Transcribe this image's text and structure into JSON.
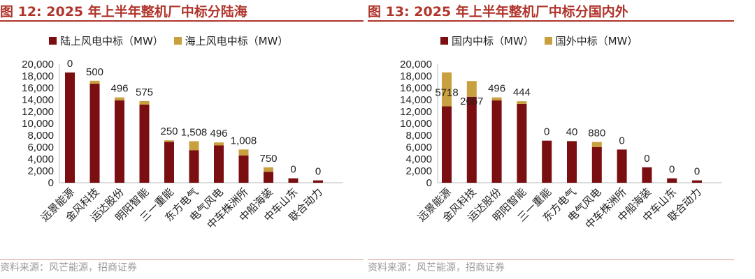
{
  "colors": {
    "primary": "#7a0e10",
    "secondary": "#c8a040",
    "title": "#b0342b",
    "source": "#9a9a9a"
  },
  "chart_data": [
    {
      "type": "bar",
      "stacked": true,
      "title": "图 12:  2025 年上半年整机厂中标分陆海",
      "categories": [
        "远景能源",
        "金风科技",
        "运达股份",
        "明阳智能",
        "三一重能",
        "东方电气",
        "电气风电",
        "中车株洲所",
        "中船海装",
        "中车山东",
        "联合动力"
      ],
      "series": [
        {
          "name": "陆上风电中标（MW）",
          "values": [
            18600,
            16700,
            13900,
            13200,
            6900,
            5500,
            6300,
            4600,
            1850,
            750,
            400
          ]
        },
        {
          "name": "海上风电中标（MW）",
          "values": [
            0,
            500,
            496,
            575,
            250,
            1508,
            496,
            1008,
            750,
            0,
            0
          ]
        }
      ],
      "data_labels": [
        "0",
        "500",
        "496",
        "575",
        "250",
        "1,508",
        "496",
        "1,008",
        "750",
        "0",
        "0"
      ],
      "ylim": [
        0,
        20000
      ],
      "yticks": [
        "0",
        "2,000",
        "4,000",
        "6,000",
        "8,000",
        "10,000",
        "12,000",
        "14,000",
        "16,000",
        "18,000",
        "20,000"
      ],
      "xlabel": "",
      "ylabel": "",
      "legend": "top",
      "source": "资料来源：风芒能源，招商证券"
    },
    {
      "type": "bar",
      "stacked": true,
      "title": "图 13:  2025 年上半年整机厂中标分国内外",
      "categories": [
        "远景能源",
        "金风科技",
        "运达股份",
        "明阳智能",
        "三一重能",
        "东方电气",
        "电气风电",
        "中车株洲所",
        "中船海装",
        "中车山东",
        "联合动力"
      ],
      "series": [
        {
          "name": "国内中标（MW）",
          "values": [
            12900,
            14500,
            13900,
            13300,
            7100,
            7000,
            6000,
            5600,
            2600,
            750,
            400
          ]
        },
        {
          "name": "国外中标（MW）",
          "values": [
            5718,
            2657,
            496,
            444,
            0,
            40,
            880,
            0,
            0,
            0,
            0
          ]
        }
      ],
      "data_labels": [
        "5718",
        "2657",
        "496",
        "444",
        "0",
        "40",
        "880",
        "0",
        "0",
        "0",
        "0"
      ],
      "ylim": [
        0,
        20000
      ],
      "yticks": [
        "0",
        "2,000",
        "4,000",
        "6,000",
        "8,000",
        "10,000",
        "12,000",
        "14,000",
        "16,000",
        "18,000",
        "20,000"
      ],
      "xlabel": "",
      "ylabel": "",
      "legend": "top",
      "source": "资料来源：风芒能源，招商证券"
    }
  ]
}
